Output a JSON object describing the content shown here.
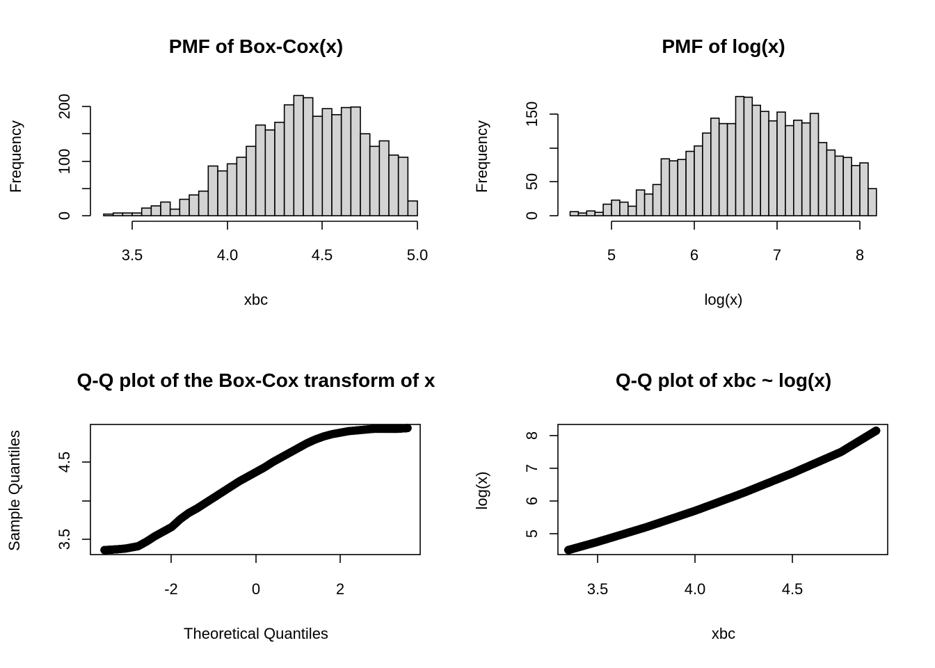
{
  "chart_data": [
    {
      "type": "bar",
      "title": "PMF of Box-Cox(x)",
      "xlabel": "xbc",
      "ylabel": "Frequency",
      "bin_start": 3.35,
      "bin_width": 0.05,
      "counts": [
        3,
        5,
        5,
        5,
        14,
        18,
        25,
        12,
        30,
        38,
        45,
        91,
        82,
        95,
        107,
        127,
        166,
        157,
        171,
        203,
        220,
        216,
        182,
        196,
        185,
        198,
        199,
        150,
        127,
        137,
        111,
        107,
        27
      ],
      "xlim": [
        3.35,
        5.0
      ],
      "ylim": [
        0,
        215
      ],
      "x_ticks": [
        "3.5",
        "4.0",
        "4.5",
        "5.0"
      ],
      "y_ticks": [
        "0",
        "100",
        "200"
      ],
      "grid": false
    },
    {
      "type": "bar",
      "title": "PMF of log(x)",
      "xlabel": "log(x)",
      "ylabel": "Frequency",
      "bin_start": 4.5,
      "bin_width": 0.1,
      "counts": [
        6,
        4,
        7,
        5,
        17,
        23,
        20,
        14,
        38,
        32,
        46,
        84,
        81,
        83,
        95,
        103,
        122,
        144,
        136,
        136,
        176,
        175,
        163,
        154,
        140,
        153,
        133,
        141,
        137,
        151,
        108,
        97,
        88,
        86,
        74,
        78,
        40
      ],
      "xlim": [
        4.5,
        8.2
      ],
      "ylim": [
        0,
        170
      ],
      "x_ticks": [
        "5",
        "6",
        "7",
        "8"
      ],
      "y_ticks": [
        "0",
        "50",
        "150"
      ],
      "grid": false
    },
    {
      "type": "scatter",
      "title": "Q-Q plot of the Box-Cox transform of x",
      "xlabel": "Theoretical Quantiles",
      "ylabel": "Sample Quantiles",
      "curve": {
        "x": [
          -3.6,
          -3.3,
          -3.1,
          -3.0,
          -2.9,
          -2.8,
          -2.6,
          -2.4,
          -2.2,
          -2.0,
          -1.8,
          -1.6,
          -1.4,
          -1.2,
          -1.0,
          -0.8,
          -0.6,
          -0.4,
          -0.2,
          0.0,
          0.2,
          0.4,
          0.6,
          0.8,
          1.0,
          1.2,
          1.4,
          1.6,
          1.8,
          2.0,
          2.2,
          2.4,
          2.6,
          2.8,
          3.0,
          3.2,
          3.35,
          3.6
        ],
        "y": [
          3.36,
          3.37,
          3.38,
          3.39,
          3.4,
          3.41,
          3.47,
          3.54,
          3.6,
          3.66,
          3.76,
          3.84,
          3.9,
          3.97,
          4.04,
          4.11,
          4.18,
          4.25,
          4.31,
          4.37,
          4.43,
          4.5,
          4.56,
          4.62,
          4.68,
          4.74,
          4.79,
          4.83,
          4.86,
          4.88,
          4.9,
          4.91,
          4.92,
          4.93,
          4.93,
          4.93,
          4.93,
          4.94
        ]
      },
      "xlim": [
        -3.9,
        3.9
      ],
      "ylim": [
        3.3,
        4.97
      ],
      "x_ticks": [
        "-2",
        "0",
        "2"
      ],
      "y_ticks": [
        "3.5",
        "4.5"
      ],
      "grid": false
    },
    {
      "type": "scatter",
      "title": "Q-Q plot of xbc ~ log(x)",
      "xlabel": "xbc",
      "ylabel": "log(x)",
      "curve": {
        "x": [
          3.35,
          3.5,
          3.75,
          4.0,
          4.25,
          4.5,
          4.75,
          4.93
        ],
        "y": [
          4.5,
          4.75,
          5.2,
          5.7,
          6.25,
          6.85,
          7.5,
          8.15
        ]
      },
      "xlim": [
        3.33,
        4.98
      ],
      "ylim": [
        4.4,
        8.35
      ],
      "x_ticks": [
        "3.5",
        "4.0",
        "4.5"
      ],
      "y_ticks": [
        "5",
        "6",
        "7",
        "8"
      ],
      "grid": false
    }
  ]
}
